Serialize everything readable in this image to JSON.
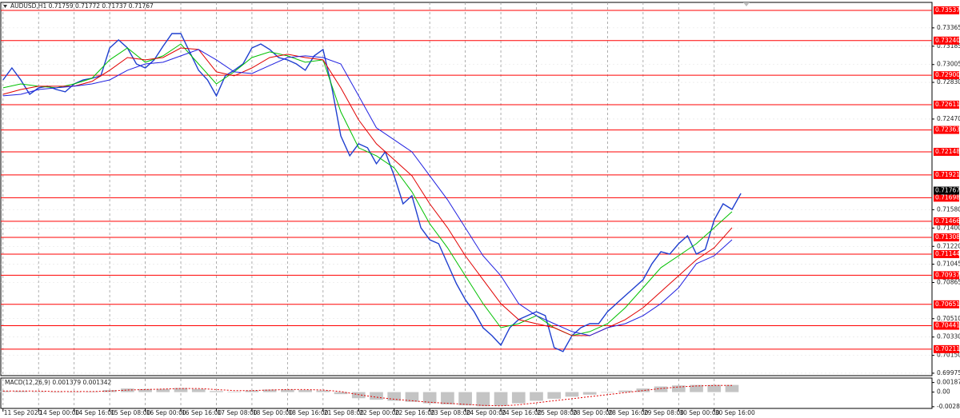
{
  "chart_data": [
    {
      "type": "line",
      "title": "AUDUSD,H1  0.71759 0.71772 0.71737 0.71767",
      "xlim": [
        -1,
        418
      ],
      "xticks": [
        {
          "value": 0,
          "label": "11 Sep 2020"
        },
        {
          "value": 16,
          "label": "14 Sep 00:00"
        },
        {
          "value": 32,
          "label": "14 Sep 16:00"
        },
        {
          "value": 48,
          "label": "15 Sep 08:00"
        },
        {
          "value": 64,
          "label": "16 Sep 00:00"
        },
        {
          "value": 80,
          "label": "16 Sep 16:00"
        },
        {
          "value": 96,
          "label": "17 Sep 08:00"
        },
        {
          "value": 112,
          "label": "18 Sep 00:00"
        },
        {
          "value": 128,
          "label": "18 Sep 16:00"
        },
        {
          "value": 144,
          "label": "21 Sep 08:00"
        },
        {
          "value": 160,
          "label": "22 Sep 00:00"
        },
        {
          "value": 176,
          "label": "22 Sep 16:00"
        },
        {
          "value": 192,
          "label": "23 Sep 08:00"
        },
        {
          "value": 208,
          "label": "24 Sep 00:00"
        },
        {
          "value": 224,
          "label": "24 Sep 16:00"
        },
        {
          "value": 240,
          "label": "25 Sep 08:00"
        },
        {
          "value": 256,
          "label": "28 Sep 00:00"
        },
        {
          "value": 272,
          "label": "28 Sep 16:00"
        },
        {
          "value": 288,
          "label": "29 Sep 08:00"
        },
        {
          "value": 304,
          "label": "30 Sep 00:00"
        },
        {
          "value": 320,
          "label": "30 Sep 16:00"
        }
      ],
      "ylim": [
        0.69951,
        0.73615
      ],
      "yticks": [
        0.73365,
        0.73185,
        0.73005,
        {
          "value": 0.7283,
          "label": "0.72830"
        },
        {
          "value": 0.7247,
          "label": "0.72470"
        },
        {
          "value": 0.7158,
          "label": "0.71580"
        },
        {
          "value": 0.714,
          "label": "0.71400"
        },
        {
          "value": 0.7122,
          "label": "0.71220"
        },
        0.71045,
        0.70865,
        {
          "value": 0.7051,
          "label": "0.70510"
        },
        {
          "value": 0.7033,
          "label": "0.70330"
        },
        {
          "value": 0.7015,
          "label": "0.70150"
        },
        0.69975
      ],
      "grid": true,
      "levels": [
        0.73537,
        {
          "value": 0.7324,
          "label": "0.73240"
        },
        {
          "value": 0.729,
          "label": "0.72900"
        },
        0.72611,
        0.72363,
        0.72148,
        0.71921,
        0.71698,
        0.71466,
        0.71308,
        0.71144,
        0.70937,
        0.70651,
        0.70441,
        0.70211
      ],
      "level_color": "#ff0000",
      "current_price": 0.71767,
      "series": [
        {
          "color": "#1f3fcf",
          "x": [
            0,
            4,
            8,
            12,
            16,
            20,
            24,
            28,
            32,
            36,
            40,
            44,
            48,
            52,
            56,
            60,
            64,
            68,
            72,
            76,
            80,
            84,
            88,
            92,
            96,
            100,
            104,
            108,
            112,
            116,
            120,
            124,
            128,
            132,
            136,
            140,
            144,
            148,
            152,
            156,
            160,
            164,
            168,
            172,
            176,
            180,
            184,
            188,
            192,
            196,
            200,
            204,
            208,
            212,
            216,
            220,
            224,
            228,
            232,
            236,
            240,
            244,
            248,
            252,
            256,
            260,
            264,
            268,
            272,
            276,
            280,
            284,
            288,
            292,
            296,
            300,
            304,
            308,
            312,
            316,
            320,
            324,
            328,
            332
          ],
          "values": [
            0.72854,
            0.72972,
            0.72854,
            0.72713,
            0.72776,
            0.72792,
            0.7276,
            0.72737,
            0.72815,
            0.72854,
            0.7287,
            0.72894,
            0.73168,
            0.73247,
            0.73168,
            0.73011,
            0.72972,
            0.73051,
            0.73184,
            0.73309,
            0.73309,
            0.73129,
            0.72949,
            0.72854,
            0.72698,
            0.72894,
            0.72949,
            0.73011,
            0.73168,
            0.73207,
            0.73153,
            0.73074,
            0.73051,
            0.73011,
            0.72949,
            0.7309,
            0.73153,
            0.72776,
            0.72305,
            0.72109,
            0.72227,
            0.72188,
            0.72031,
            0.72148,
            0.71913,
            0.71638,
            0.71717,
            0.71403,
            0.71285,
            0.71246,
            0.7105,
            0.70854,
            0.70697,
            0.70579,
            0.70422,
            0.70344,
            0.7025,
            0.70422,
            0.70501,
            0.7054,
            0.70579,
            0.7054,
            0.70226,
            0.70187,
            0.70344,
            0.70422,
            0.70461,
            0.70461,
            0.70579,
            0.70658,
            0.70736,
            0.70814,
            0.70893,
            0.7105,
            0.71168,
            0.71144,
            0.71246,
            0.71324,
            0.71144,
            0.71191,
            0.71481,
            0.71638,
            0.71583,
            0.7174
          ]
        },
        {
          "color": "#00c000",
          "x": [
            0,
            8,
            16,
            24,
            32,
            40,
            48,
            56,
            64,
            72,
            80,
            88,
            96,
            104,
            112,
            120,
            128,
            136,
            144,
            152,
            160,
            168,
            176,
            184,
            192,
            200,
            208,
            216,
            224,
            232,
            240,
            248,
            256,
            264,
            272,
            280,
            288,
            296,
            304,
            312,
            320,
            328
          ],
          "values": [
            0.72776,
            0.72815,
            0.72792,
            0.72776,
            0.72815,
            0.7287,
            0.73051,
            0.73168,
            0.73027,
            0.7309,
            0.73207,
            0.73011,
            0.72815,
            0.72933,
            0.73074,
            0.73129,
            0.7309,
            0.73027,
            0.73051,
            0.72541,
            0.72188,
            0.72109,
            0.71991,
            0.71756,
            0.71442,
            0.71207,
            0.70932,
            0.70658,
            0.70422,
            0.70461,
            0.7054,
            0.70422,
            0.70344,
            0.70383,
            0.70461,
            0.70618,
            0.70814,
            0.71011,
            0.71128,
            0.71246,
            0.71403,
            0.7156
          ]
        },
        {
          "color": "#e00000",
          "x": [
            0,
            8,
            16,
            24,
            32,
            40,
            48,
            56,
            64,
            72,
            80,
            88,
            96,
            104,
            112,
            120,
            128,
            136,
            144,
            152,
            160,
            168,
            176,
            184,
            192,
            200,
            208,
            216,
            224,
            232,
            240,
            248,
            256,
            264,
            272,
            280,
            288,
            296,
            304,
            312,
            320,
            328
          ],
          "values": [
            0.72713,
            0.7276,
            0.72792,
            0.72792,
            0.72792,
            0.72839,
            0.72949,
            0.73074,
            0.73051,
            0.73074,
            0.73168,
            0.73153,
            0.72933,
            0.72894,
            0.72972,
            0.73074,
            0.73106,
            0.73074,
            0.73051,
            0.72776,
            0.72462,
            0.72227,
            0.7207,
            0.71913,
            0.71638,
            0.71403,
            0.71128,
            0.70893,
            0.70658,
            0.70501,
            0.70461,
            0.70422,
            0.70344,
            0.70344,
            0.70422,
            0.70501,
            0.70618,
            0.70775,
            0.70932,
            0.71089,
            0.71207,
            0.71403
          ]
        },
        {
          "color": "#2020e0",
          "x": [
            0,
            8,
            16,
            24,
            32,
            40,
            48,
            56,
            64,
            72,
            80,
            88,
            96,
            104,
            112,
            120,
            128,
            136,
            144,
            152,
            160,
            168,
            176,
            184,
            192,
            200,
            208,
            216,
            224,
            232,
            240,
            248,
            256,
            264,
            272,
            280,
            288,
            296,
            304,
            312,
            320,
            328
          ],
          "values": [
            0.72698,
            0.72713,
            0.7276,
            0.72776,
            0.72792,
            0.72815,
            0.72854,
            0.72949,
            0.73011,
            0.73027,
            0.7309,
            0.73153,
            0.73051,
            0.72933,
            0.72917,
            0.72996,
            0.73074,
            0.7309,
            0.73074,
            0.73011,
            0.72698,
            0.72384,
            0.72266,
            0.72148,
            0.71913,
            0.71678,
            0.71403,
            0.71128,
            0.70932,
            0.70658,
            0.7054,
            0.70461,
            0.70383,
            0.70344,
            0.70422,
            0.70461,
            0.7054,
            0.70658,
            0.70814,
            0.7105,
            0.71128,
            0.71285
          ]
        }
      ]
    },
    {
      "type": "bar",
      "title": "MACD(12,26,9) 0.001379 0.001342",
      "ylim": [
        -0.0032,
        0.0026
      ],
      "yticks": [
        0.001878,
        {
          "value": 0,
          "label": "0.00"
        },
        -0.002864
      ],
      "color": "#c4c4c4",
      "x": [
        0,
        8,
        16,
        24,
        32,
        40,
        48,
        56,
        64,
        72,
        80,
        88,
        96,
        104,
        112,
        120,
        128,
        136,
        144,
        152,
        160,
        168,
        176,
        184,
        192,
        200,
        208,
        216,
        224,
        232,
        240,
        248,
        256,
        264,
        272,
        280,
        288,
        296,
        304,
        312,
        320,
        328
      ],
      "values": [
        0.0002,
        0.0002,
        0.0001,
        0,
        0,
        0.0001,
        0.0004,
        0.0007,
        0.0006,
        0.0006,
        0.0008,
        0.0006,
        0.0002,
        0.0001,
        0.0003,
        0.0005,
        0.0005,
        0.0004,
        0.0003,
        -0.0004,
        -0.0012,
        -0.0015,
        -0.0017,
        -0.0019,
        -0.0022,
        -0.0024,
        -0.0026,
        -0.0028,
        -0.0027,
        -0.0022,
        -0.0017,
        -0.0013,
        -0.0009,
        -0.0005,
        -0.0001,
        0.0003,
        0.0007,
        0.0011,
        0.0013,
        0.0014,
        0.0014,
        0.0014
      ],
      "signal": {
        "color": "#e00000",
        "values": [
          0.0002,
          0.0002,
          0.0002,
          0.0001,
          0.0001,
          0.0001,
          0.0002,
          0.0004,
          0.0005,
          0.0006,
          0.0007,
          0.0007,
          0.0005,
          0.0003,
          0.0003,
          0.0004,
          0.0005,
          0.0005,
          0.0004,
          0.0001,
          -0.0005,
          -0.001,
          -0.0014,
          -0.0017,
          -0.002,
          -0.0022,
          -0.0024,
          -0.0026,
          -0.0027,
          -0.0025,
          -0.0021,
          -0.0017,
          -0.0013,
          -0.0009,
          -0.0005,
          -0.0001,
          0.0003,
          0.0007,
          0.001,
          0.0012,
          0.0013,
          0.0013
        ]
      }
    }
  ]
}
